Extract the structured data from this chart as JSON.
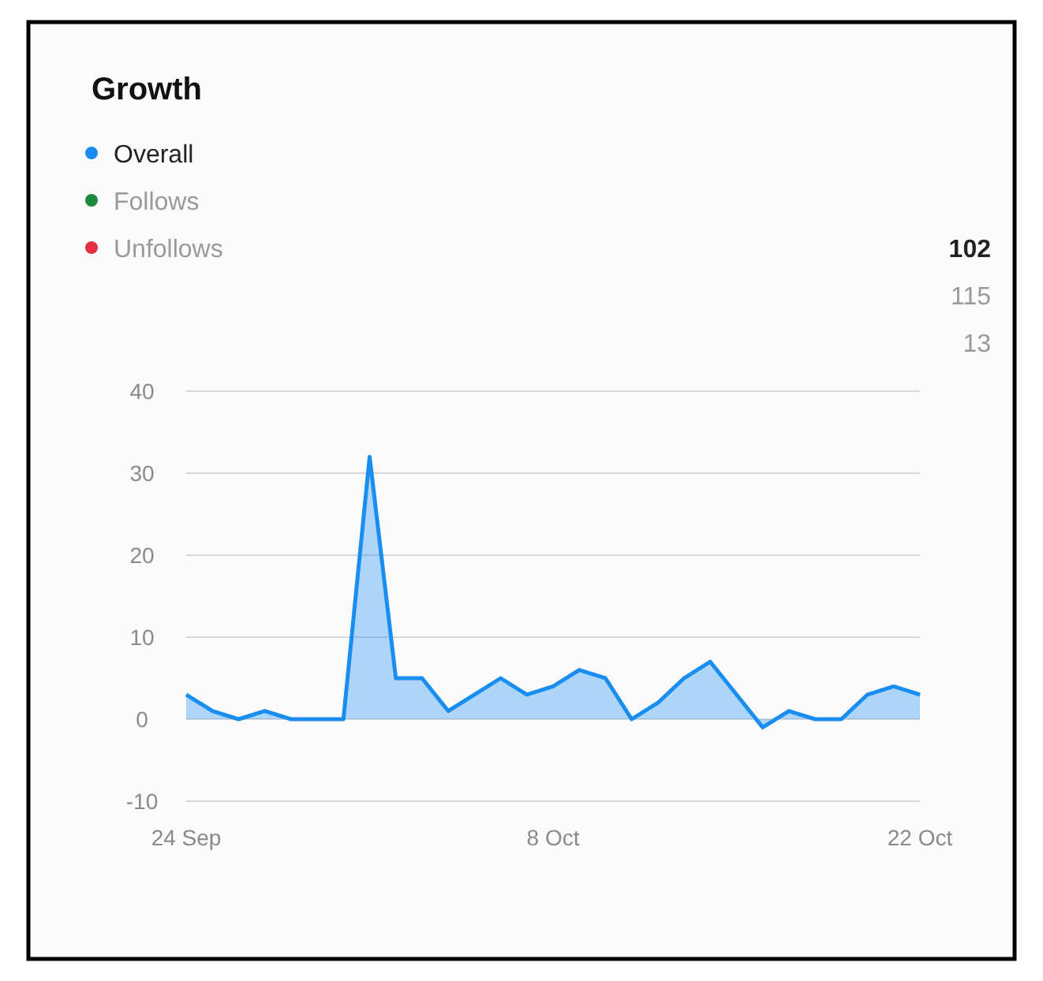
{
  "chart_data": {
    "type": "area",
    "title": "Growth",
    "x": [
      "--09-24",
      "--09-25",
      "--09-26",
      "--09-27",
      "--09-28",
      "--09-29",
      "--09-30",
      "--10-01",
      "--10-02",
      "--10-03",
      "--10-04",
      "--10-05",
      "--10-06",
      "--10-07",
      "--10-08",
      "--10-09",
      "--10-10",
      "--10-11",
      "--10-12",
      "--10-13",
      "--10-14",
      "--10-15",
      "--10-16",
      "--10-17",
      "--10-18",
      "--10-19",
      "--10-20",
      "--10-21",
      "--10-22"
    ],
    "series": [
      {
        "name": "Overall",
        "color": "#1a8ef0",
        "values": [
          3,
          1,
          0,
          1,
          0,
          0,
          0,
          32,
          5,
          5,
          1,
          3,
          5,
          3,
          4,
          6,
          5,
          0,
          2,
          5,
          7,
          3,
          -1,
          1,
          0,
          0,
          3,
          4,
          3
        ]
      },
      {
        "name": "Follows",
        "color": "#1e8a3c",
        "values": [
          null,
          null,
          null,
          null,
          null,
          null,
          null,
          null,
          null,
          null,
          null,
          null,
          null,
          null,
          null,
          null,
          null,
          null,
          null,
          null,
          null,
          null,
          null,
          null,
          null,
          null,
          null,
          null,
          null
        ]
      },
      {
        "name": "Unfollows",
        "color": "#e0303e",
        "values": [
          null,
          null,
          null,
          null,
          null,
          null,
          null,
          null,
          null,
          null,
          null,
          null,
          null,
          null,
          null,
          null,
          null,
          null,
          null,
          null,
          null,
          null,
          null,
          null,
          null,
          null,
          null,
          null,
          null
        ]
      }
    ],
    "annotations": [
      "102",
      "115",
      "13"
    ],
    "xlim": [
      "--09-24",
      "--10-22"
    ],
    "xticks": [
      {
        "value": "--09-24",
        "label": "24 Sep"
      },
      {
        "value": "--10-08",
        "label": "8 Oct"
      },
      {
        "value": "--10-22",
        "label": "22 Oct"
      }
    ],
    "ylim": [
      -10,
      40
    ],
    "yticks": [
      -10,
      0,
      10,
      20,
      30,
      40
    ],
    "grid": "y",
    "legend": "top left",
    "marker": "none",
    "line_style": "solid"
  }
}
